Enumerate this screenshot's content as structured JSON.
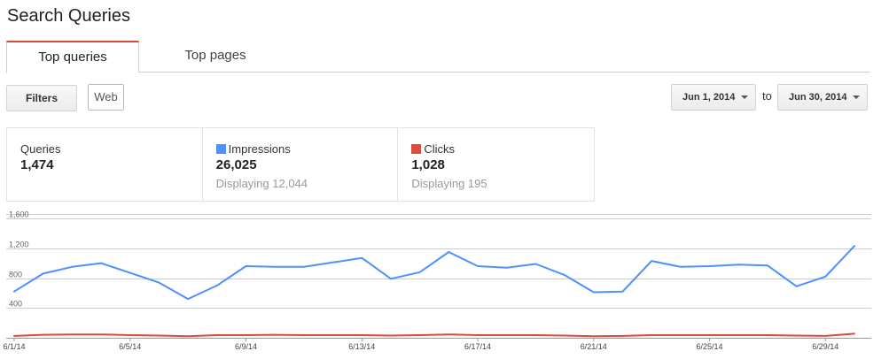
{
  "header": {
    "title": "Search Queries"
  },
  "tabs": [
    {
      "label": "Top queries",
      "active": true
    },
    {
      "label": "Top pages",
      "active": false
    }
  ],
  "toolbar": {
    "filters_label": "Filters",
    "web_label": "Web",
    "date_start": "Jun 1, 2014",
    "date_to": "to",
    "date_end": "Jun 30, 2014"
  },
  "stats": {
    "queries": {
      "label": "Queries",
      "value": "1,474"
    },
    "impressions": {
      "label": "Impressions",
      "value": "26,025",
      "sub": "Displaying 12,044"
    },
    "clicks": {
      "label": "Clicks",
      "value": "1,028",
      "sub": "Displaying 195"
    }
  },
  "colors": {
    "accent_tab": "#d84a38",
    "impressions": "#4d90fe",
    "clicks": "#dd4b39",
    "grid": "#cccccc"
  },
  "icons": {
    "dropdown": "caret-down-icon"
  },
  "chart_data": {
    "type": "line",
    "y_ticks": [
      "1,600",
      "1,200",
      "800",
      "400"
    ],
    "y_tick_values": [
      1600,
      1200,
      800,
      400
    ],
    "ylim": [
      0,
      1600
    ],
    "x_labels": [
      "6/1/14",
      "6/5/14",
      "6/9/14",
      "6/13/14",
      "6/17/14",
      "6/21/14",
      "6/25/14",
      "6/29/14"
    ],
    "x_label_index": [
      0,
      4,
      8,
      12,
      16,
      20,
      24,
      28
    ],
    "x": [
      "6/1/14",
      "6/2/14",
      "6/3/14",
      "6/4/14",
      "6/5/14",
      "6/6/14",
      "6/7/14",
      "6/8/14",
      "6/9/14",
      "6/10/14",
      "6/11/14",
      "6/12/14",
      "6/13/14",
      "6/14/14",
      "6/15/14",
      "6/16/14",
      "6/17/14",
      "6/18/14",
      "6/19/14",
      "6/20/14",
      "6/21/14",
      "6/22/14",
      "6/23/14",
      "6/24/14",
      "6/25/14",
      "6/26/14",
      "6/27/14",
      "6/28/14",
      "6/29/14",
      "6/30/14"
    ],
    "series": [
      {
        "name": "Impressions",
        "color": "#4d90fe",
        "values": [
          620,
          860,
          950,
          1000,
          870,
          740,
          520,
          700,
          960,
          950,
          950,
          1010,
          1070,
          790,
          880,
          1150,
          960,
          940,
          990,
          840,
          610,
          620,
          1030,
          950,
          960,
          980,
          970,
          690,
          820,
          1230
        ]
      },
      {
        "name": "Clicks",
        "color": "#dd4b39",
        "values": [
          25,
          40,
          45,
          45,
          35,
          30,
          20,
          35,
          35,
          40,
          35,
          35,
          35,
          30,
          35,
          45,
          35,
          35,
          35,
          30,
          20,
          25,
          35,
          35,
          35,
          35,
          35,
          30,
          25,
          55
        ]
      }
    ]
  }
}
